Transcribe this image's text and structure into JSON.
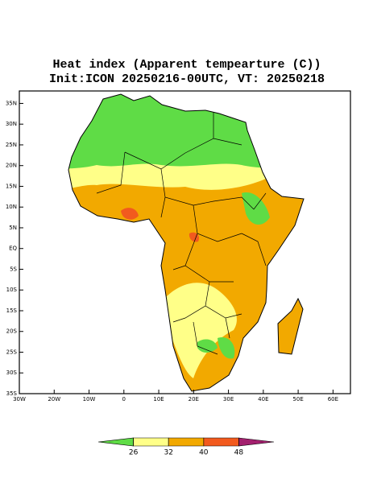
{
  "header": {
    "title": "Heat index (Apparent tempearture (C))",
    "subtitle": "Init:ICON 20250216-00UTC, VT: 20250218"
  },
  "map": {
    "xlim": [
      -30,
      65
    ],
    "ylim": [
      -35,
      38
    ],
    "xticks": [
      {
        "value": -30,
        "label": "30W"
      },
      {
        "value": -20,
        "label": "20W"
      },
      {
        "value": -10,
        "label": "10W"
      },
      0,
      {
        "value": 10,
        "label": "10E"
      },
      {
        "value": 20,
        "label": "20E"
      },
      {
        "value": 30,
        "label": "30E"
      },
      {
        "value": 40,
        "label": "40E"
      },
      {
        "value": 50,
        "label": "50E"
      },
      {
        "value": 60,
        "label": "60E"
      }
    ],
    "yticks": [
      {
        "value": -35,
        "label": "35S"
      },
      {
        "value": -30,
        "label": "30S"
      },
      {
        "value": -25,
        "label": "25S"
      },
      {
        "value": -20,
        "label": "20S"
      },
      {
        "value": -15,
        "label": "15S"
      },
      {
        "value": -10,
        "label": "10S"
      },
      {
        "value": -5,
        "label": "5S"
      },
      {
        "value": 0,
        "label": "EQ"
      },
      {
        "value": 5,
        "label": "5N"
      },
      {
        "value": 10,
        "label": "10N"
      },
      {
        "value": 15,
        "label": "15N"
      },
      {
        "value": 20,
        "label": "20N"
      },
      {
        "value": 25,
        "label": "25N"
      },
      {
        "value": 30,
        "label": "30N"
      },
      {
        "value": 35,
        "label": "35N"
      }
    ]
  },
  "colorbar": {
    "levels": [
      26,
      32,
      40,
      48
    ],
    "colors": [
      "#5fdc46",
      "#ffff88",
      "#f2a900",
      "#f25a1e",
      "#a3206e"
    ]
  }
}
